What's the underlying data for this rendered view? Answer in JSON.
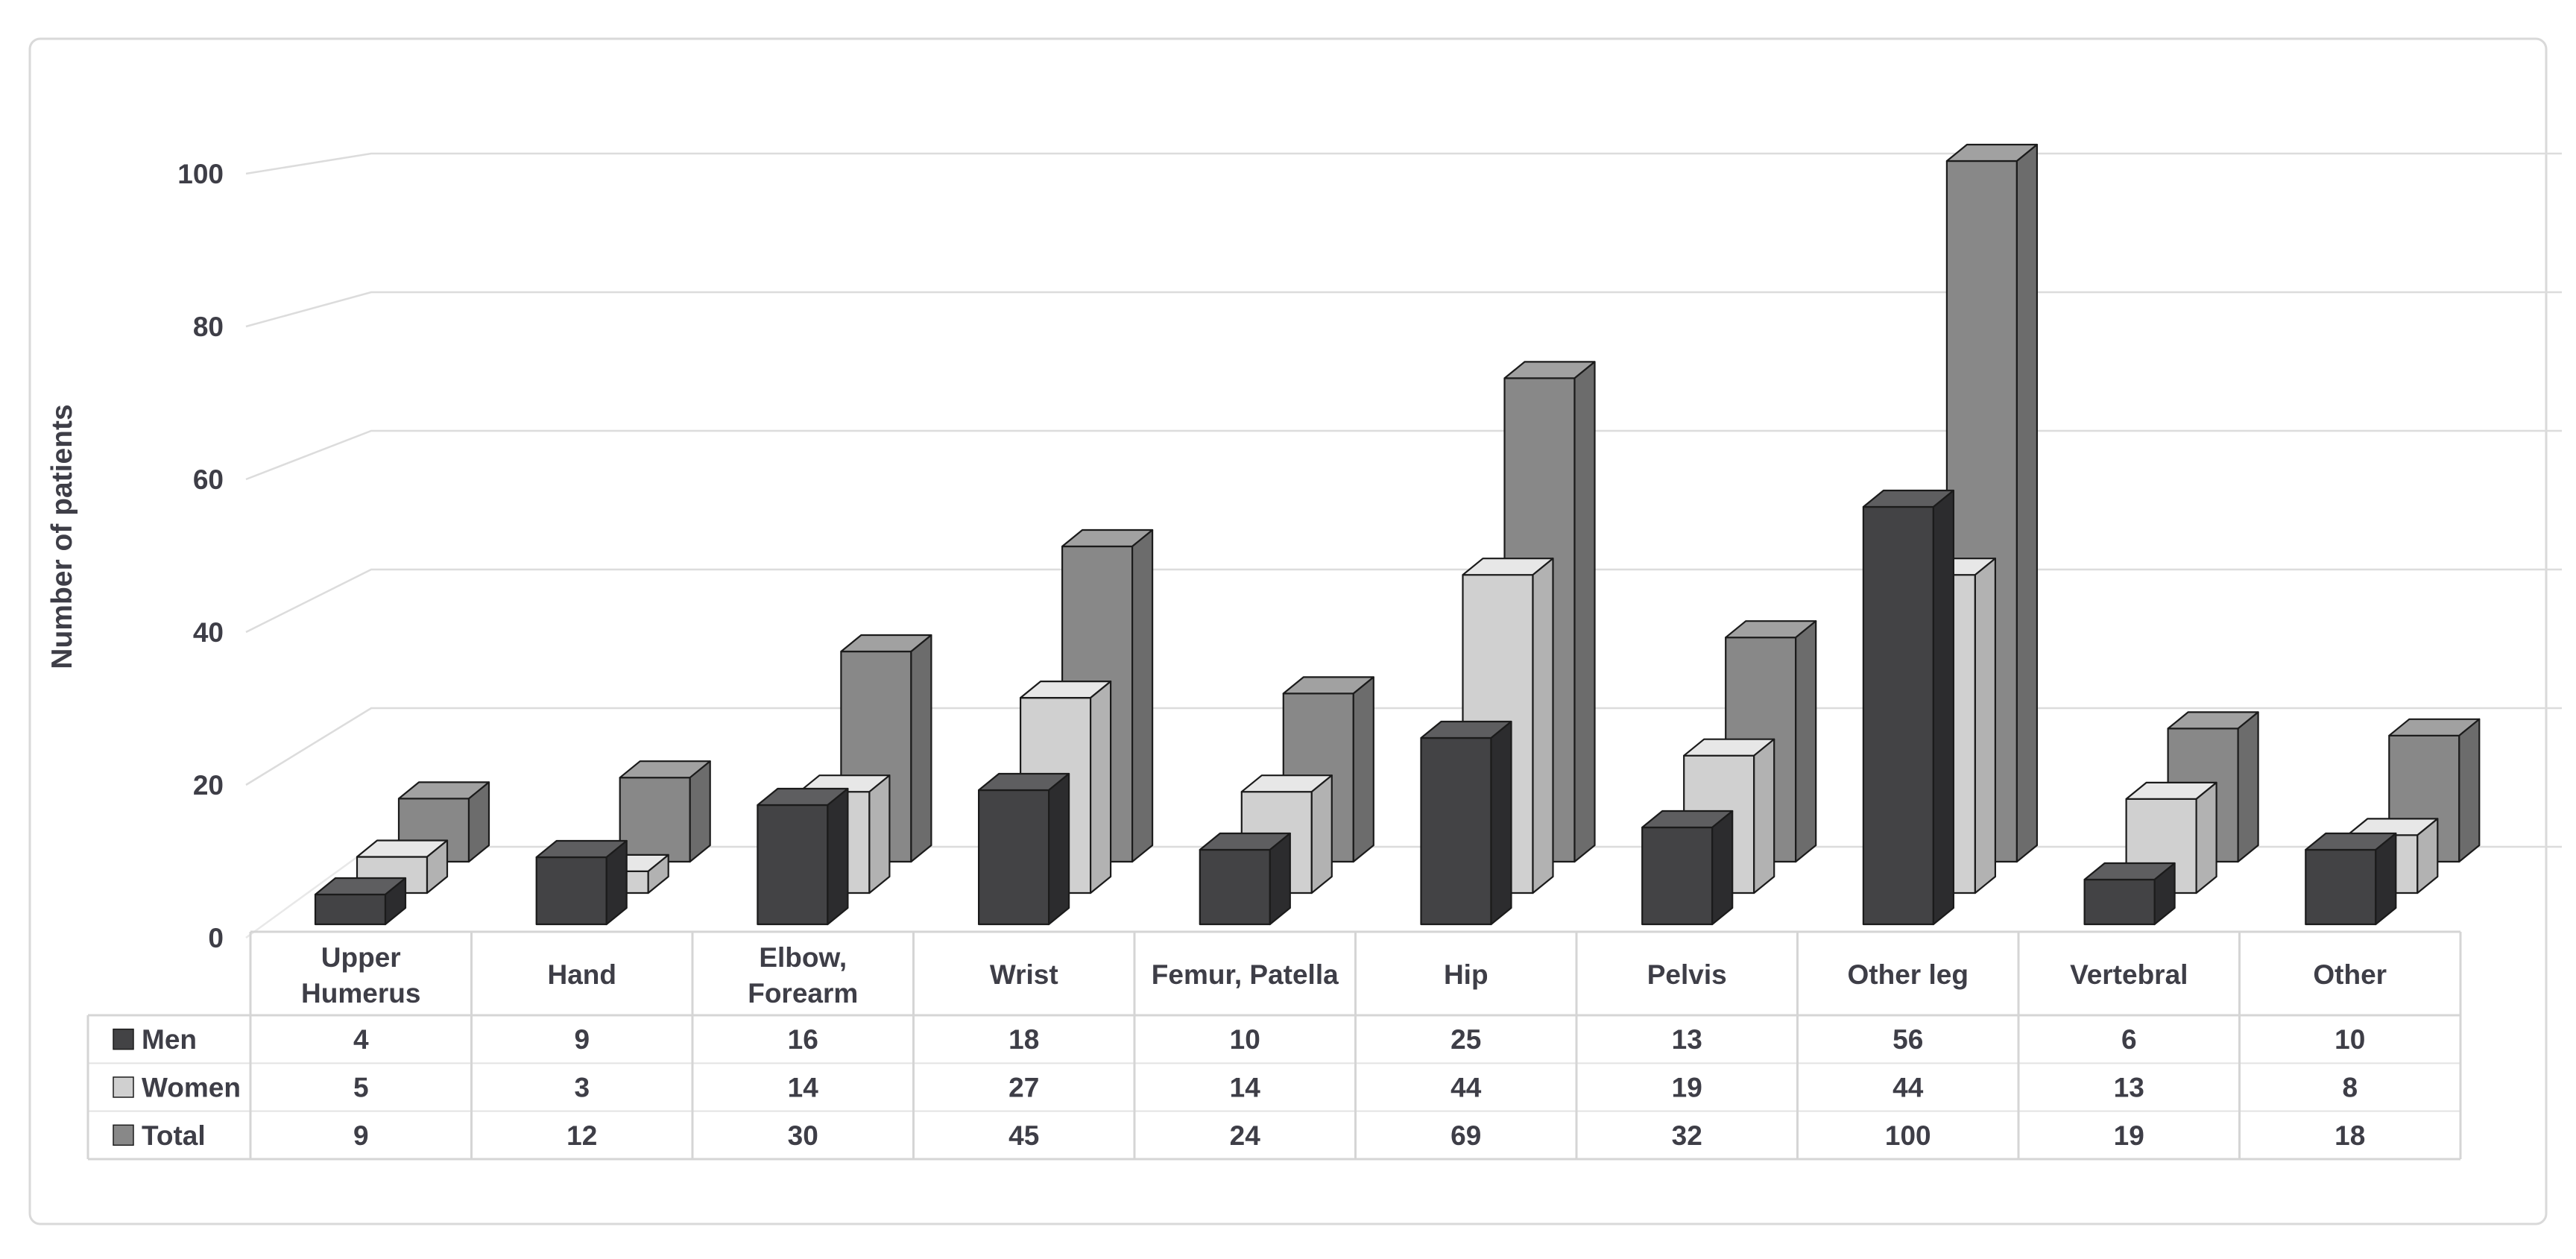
{
  "chart_data": {
    "type": "bar",
    "style": "3d-column",
    "title": "",
    "ylabel": "Number of patients",
    "xlabel": "",
    "yticks": [
      0,
      20,
      40,
      60,
      80,
      100
    ],
    "ylim": [
      0,
      110
    ],
    "grid": true,
    "legend_position": "data-table-left-column",
    "categories": [
      "Upper\nHumerus",
      "Hand",
      "Elbow,\nForearm",
      "Wrist",
      "Femur, Patella",
      "Hip",
      "Pelvis",
      "Other leg",
      "Vertebral",
      "Other"
    ],
    "series": [
      {
        "name": "Men",
        "values": [
          4,
          9,
          16,
          18,
          10,
          25,
          13,
          56,
          6,
          10
        ]
      },
      {
        "name": "Women",
        "values": [
          5,
          3,
          14,
          27,
          14,
          44,
          19,
          44,
          13,
          8
        ]
      },
      {
        "name": "Total",
        "values": [
          9,
          12,
          30,
          45,
          24,
          69,
          32,
          100,
          19,
          18
        ]
      }
    ],
    "data_table_shown": true
  },
  "colors": {
    "series": [
      {
        "name": "Men",
        "front": "#434345",
        "top": "#5e5e60",
        "side": "#2c2c2e"
      },
      {
        "name": "Women",
        "front": "#d0d0d0",
        "top": "#e7e7e7",
        "side": "#b2b2b2"
      },
      {
        "name": "Total",
        "front": "#888888",
        "top": "#a1a1a1",
        "side": "#6c6c6c"
      }
    ],
    "bar_outline": "#1b1b1b",
    "gridline": "#dcdcdc",
    "table_border": "#d5d5d5",
    "table_row_separator": "#e3e3e3",
    "text": "#3e3e47",
    "frame_border": "#d9d9d9",
    "background": "#ffffff"
  }
}
